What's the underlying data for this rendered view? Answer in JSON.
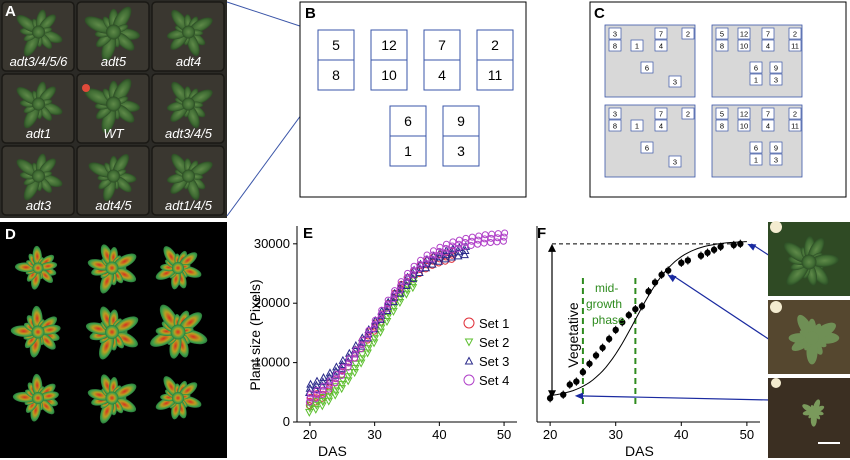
{
  "panels": {
    "a": "A",
    "b": "B",
    "c": "C",
    "d": "D",
    "e": "E",
    "f": "F"
  },
  "panel_a": {
    "labels": [
      "adt3/4/5/6",
      "adt5",
      "adt4",
      "adt1",
      "WT",
      "adt3/4/5",
      "adt3",
      "adt4/5",
      "adt1/4/5"
    ]
  },
  "panel_b": {
    "pairs": [
      [
        "5",
        "8"
      ],
      [
        "12",
        "10"
      ],
      [
        "7",
        "4"
      ],
      [
        "2",
        "11"
      ],
      [
        "6",
        "1"
      ],
      [
        "9",
        "3"
      ]
    ]
  },
  "panel_c": {
    "plate_left": [
      "3",
      "8",
      "1",
      "7",
      "4",
      "2",
      "6",
      "3"
    ],
    "plate_right": [
      "5",
      "8",
      "12",
      "10",
      "7",
      "4",
      "2",
      "11",
      "6",
      "1",
      "9",
      "3"
    ]
  },
  "panel_f": {
    "vertical_label": "Vegetative",
    "phase_lines": [
      "mid-",
      "growth",
      "phase"
    ]
  },
  "colors": {
    "set1": "#e0303a",
    "set2": "#5cbf2e",
    "set3": "#2a2a8a",
    "set4": "#b040c8",
    "phase": "#2e8b1e",
    "connector": "#1a2aa0"
  },
  "chart_data": [
    {
      "type": "scatter",
      "xlabel": "DAS",
      "ylabel": "Plant size (Pixels)",
      "xlim": [
        18,
        52
      ],
      "ylim": [
        0,
        33000
      ],
      "x_ticks": [
        20,
        30,
        40,
        50
      ],
      "y_ticks": [
        0,
        10000,
        20000,
        30000
      ],
      "legend_position": "right",
      "series": [
        {
          "name": "Set 1",
          "marker": "circle",
          "x": [
            20,
            21,
            22,
            23,
            24,
            25,
            26,
            27,
            28,
            29,
            30,
            31,
            32,
            33,
            34,
            35,
            36,
            37,
            38,
            39,
            40,
            41,
            42
          ],
          "y": [
            4000,
            4600,
            5200,
            6400,
            7800,
            9200,
            10500,
            12000,
            13600,
            15000,
            16500,
            18000,
            19800,
            21500,
            23000,
            24200,
            25300,
            26200,
            27000,
            27600,
            28000,
            28300,
            28600
          ]
        },
        {
          "name": "Set 2",
          "marker": "triangle-down",
          "x": [
            20,
            21,
            22,
            23,
            24,
            25,
            26,
            27,
            28,
            29,
            30,
            31,
            32,
            33,
            34,
            35,
            36
          ],
          "y": [
            2500,
            3000,
            3600,
            4400,
            5400,
            6500,
            7800,
            9200,
            10800,
            12500,
            14200,
            16000,
            17800,
            19500,
            21000,
            22400,
            23500
          ]
        },
        {
          "name": "Set 3",
          "marker": "triangle-up",
          "x": [
            20,
            21,
            22,
            23,
            24,
            25,
            26,
            27,
            28,
            29,
            30,
            31,
            32,
            33,
            34,
            35,
            36,
            37,
            38,
            39,
            40,
            41,
            42,
            43,
            44
          ],
          "y": [
            5500,
            6000,
            6600,
            7400,
            8400,
            9500,
            10700,
            12000,
            13300,
            14700,
            16200,
            17800,
            19300,
            20800,
            22200,
            23500,
            24700,
            25700,
            26500,
            27100,
            27600,
            28000,
            28300,
            28500,
            28700
          ]
        },
        {
          "name": "Set 4",
          "marker": "circle",
          "x": [
            20,
            21,
            22,
            23,
            24,
            25,
            26,
            27,
            28,
            29,
            30,
            31,
            32,
            33,
            34,
            35,
            36,
            37,
            38,
            39,
            40,
            41,
            42,
            43,
            44,
            45,
            46,
            47,
            48,
            49,
            50
          ],
          "y": [
            3500,
            4100,
            4800,
            5700,
            6800,
            8000,
            9400,
            10900,
            12500,
            14200,
            15900,
            17600,
            19300,
            20900,
            22400,
            23800,
            25000,
            26000,
            26900,
            27600,
            28200,
            28700,
            29100,
            29400,
            29700,
            29900,
            30100,
            30300,
            30400,
            30500,
            30600
          ]
        }
      ]
    },
    {
      "type": "line",
      "xlabel": "DAS",
      "xlim": [
        18,
        52
      ],
      "ylim": [
        0,
        33000
      ],
      "x_ticks": [
        20,
        30,
        40,
        50
      ],
      "markers": "filled-circle-with-error-bars",
      "x": [
        20,
        22,
        23,
        24,
        25,
        26,
        27,
        28,
        29,
        30,
        31,
        32,
        33,
        34,
        35,
        36,
        37,
        38,
        40,
        41,
        43,
        44,
        45,
        46,
        48,
        49
      ],
      "y": [
        4000,
        4600,
        6300,
        6800,
        8400,
        9800,
        11200,
        12500,
        14000,
        15500,
        16800,
        18000,
        19000,
        19500,
        22000,
        23500,
        24800,
        25500,
        26800,
        27200,
        28000,
        28500,
        29000,
        29500,
        29800,
        30000
      ],
      "annotations": {
        "plateau_y": 30000,
        "growth_phase_x": [
          25,
          33
        ]
      }
    }
  ]
}
